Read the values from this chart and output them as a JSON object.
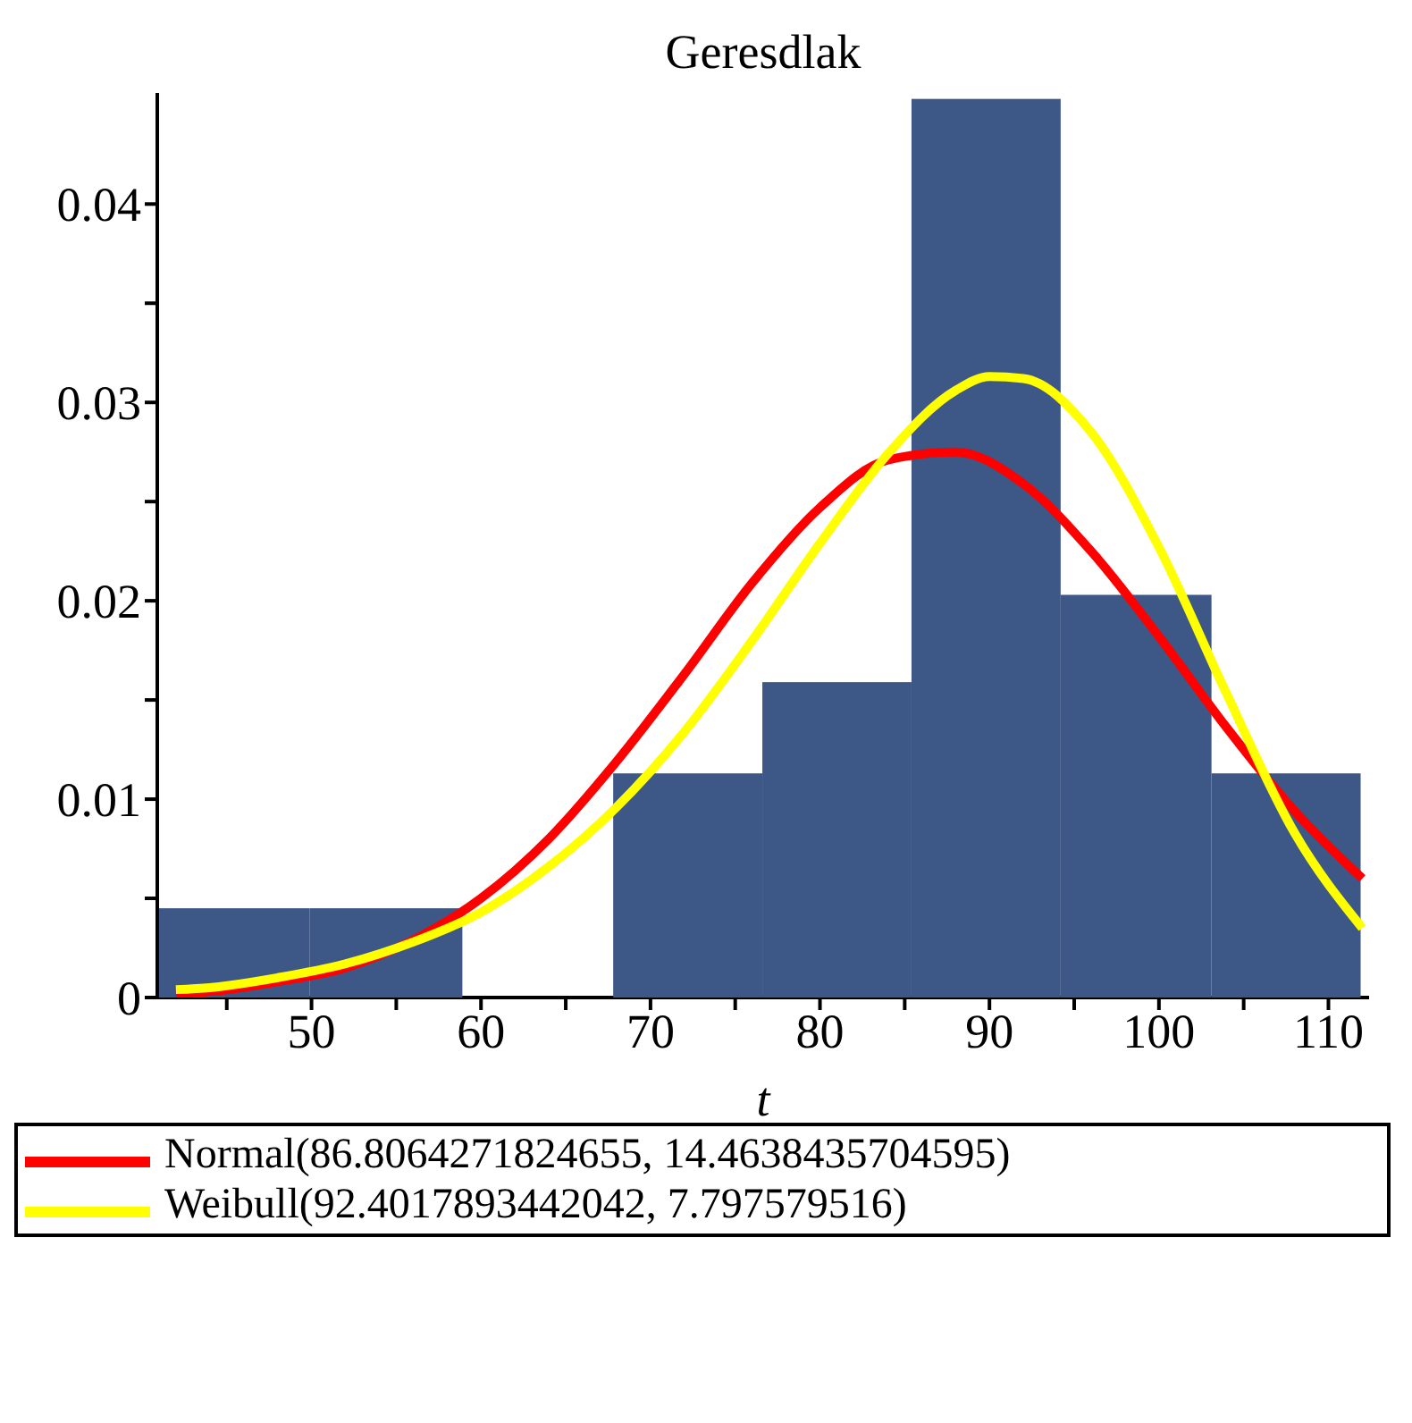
{
  "chart_data": {
    "type": "histogram",
    "title": "Geresdlak",
    "xlabel": "t",
    "bins": [
      41.0,
      49.9,
      58.9,
      67.8,
      76.6,
      85.4,
      94.2,
      103.1,
      111.9
    ],
    "values": [
      0.0045,
      0.0045,
      0,
      0.0113,
      0.0159,
      0.0453,
      0.0203,
      0.0113
    ],
    "color": "#3d5787",
    "series": [
      {
        "type": "line",
        "name": "Normal(86.8064271824655, 14.4638435704595)",
        "color": "#ff0000",
        "x": [
          42,
          44,
          48,
          52,
          56,
          60,
          64,
          68,
          72,
          76,
          80,
          84,
          88,
          92,
          96,
          100,
          104,
          108,
          112
        ],
        "values": [
          0.0002,
          0.0003,
          0.0008,
          0.0015,
          0.0029,
          0.005,
          0.008,
          0.0119,
          0.0163,
          0.0209,
          0.0247,
          0.0271,
          0.0275,
          0.0259,
          0.0225,
          0.0182,
          0.0136,
          0.0094,
          0.006
        ]
      },
      {
        "type": "line",
        "name": "Weibull(92.4017893442042, 7.797579516)",
        "color": "#ffff00",
        "x": [
          42,
          44,
          48,
          52,
          56,
          60,
          64,
          68,
          72,
          76,
          80,
          84,
          88,
          90,
          92,
          96,
          100,
          104,
          108,
          112
        ],
        "values": [
          0.0004,
          0.0005,
          0.001,
          0.0017,
          0.0028,
          0.0043,
          0.0066,
          0.0096,
          0.0134,
          0.018,
          0.0229,
          0.0274,
          0.0306,
          0.0313,
          0.0312,
          0.0285,
          0.0227,
          0.0153,
          0.0083,
          0.0035
        ]
      }
    ],
    "xlim": [
      40.9,
      112.4
    ],
    "xticks": [
      {
        "value": 45,
        "label": null
      },
      50,
      {
        "value": 55,
        "label": null
      },
      60,
      {
        "value": 65,
        "label": null
      },
      70,
      {
        "value": 75,
        "label": null
      },
      80,
      {
        "value": 85,
        "label": null
      },
      90,
      {
        "value": 95,
        "label": null
      },
      100,
      {
        "value": 105,
        "label": null
      },
      110
    ],
    "ylim": [
      0,
      0.0456
    ],
    "yticks": [
      0,
      {
        "value": 0.005,
        "label": null
      },
      0.01,
      {
        "value": 0.015,
        "label": null
      },
      0.02,
      {
        "value": 0.025,
        "label": null
      },
      0.03,
      {
        "value": 0.035,
        "label": null
      },
      0.04
    ],
    "grid": false,
    "legend": "bottom",
    "line_style": "solid",
    "marker": "none"
  }
}
